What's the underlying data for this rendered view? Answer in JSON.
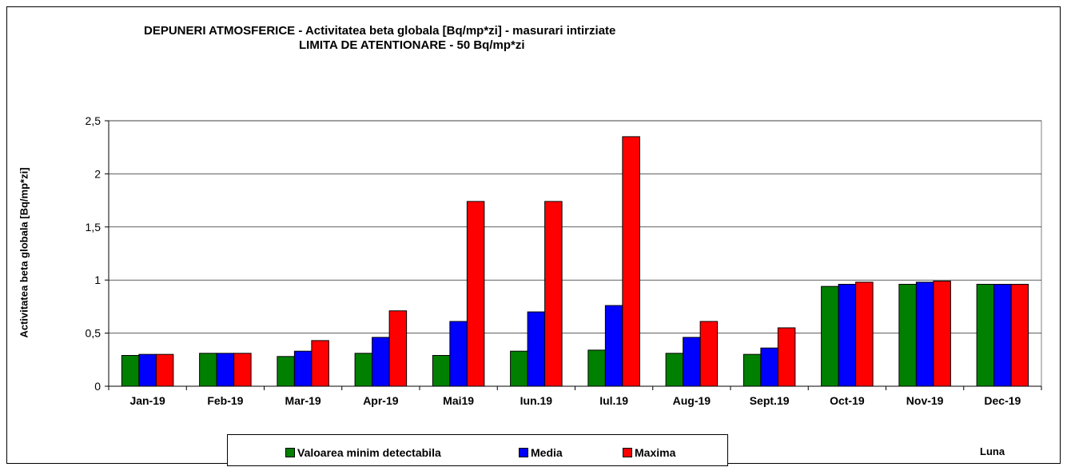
{
  "chart_data": {
    "type": "bar",
    "title": "DEPUNERI ATMOSFERICE - Activitatea beta globala [Bq/mp*zi] - masurari intirziate",
    "subtitle": "LIMITA DE ATENTIONARE - 50 Bq/mp*zi",
    "xlabel": "Luna",
    "ylabel": "Activitatea beta globala [Bq/mp*zi]",
    "ylim": [
      0,
      2.5
    ],
    "yticks": [
      "0",
      "0,5",
      "1",
      "1,5",
      "2",
      "2,5"
    ],
    "ytick_values": [
      0,
      0.5,
      1,
      1.5,
      2,
      2.5
    ],
    "grid": true,
    "legend_position": "bottom",
    "categories": [
      "Jan-19",
      "Feb-19",
      "Mar-19",
      "Apr-19",
      "Mai19",
      "Iun.19",
      "Iul.19",
      "Aug-19",
      "Sept.19",
      "Oct-19",
      "Nov-19",
      "Dec-19"
    ],
    "series": [
      {
        "name": "Valoarea minim detectabila",
        "color": "#008000",
        "values": [
          0.29,
          0.31,
          0.28,
          0.31,
          0.29,
          0.33,
          0.34,
          0.31,
          0.3,
          0.94,
          0.96,
          0.96
        ]
      },
      {
        "name": "Media",
        "color": "#0000ff",
        "values": [
          0.3,
          0.31,
          0.33,
          0.46,
          0.61,
          0.7,
          0.76,
          0.46,
          0.36,
          0.96,
          0.98,
          0.96
        ]
      },
      {
        "name": "Maxima",
        "color": "#ff0000",
        "values": [
          0.3,
          0.31,
          0.43,
          0.71,
          1.74,
          1.74,
          2.35,
          0.61,
          0.55,
          0.98,
          0.99,
          0.96
        ]
      }
    ]
  }
}
